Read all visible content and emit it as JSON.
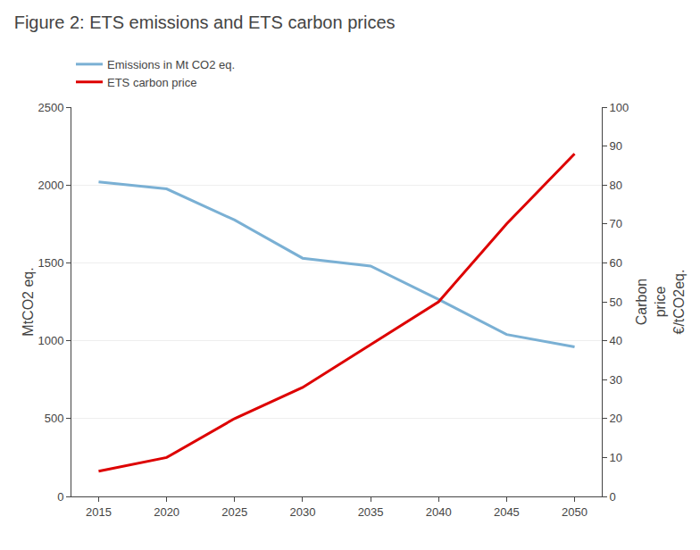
{
  "chart_data": {
    "type": "line",
    "title": "Figure 2: ETS emissions and ETS carbon prices",
    "ylabel": "MtCO2 eq.",
    "y2label": "Carbon\nprice\n€/tCO2eq.",
    "x": [
      2015,
      2020,
      2025,
      2030,
      2035,
      2040,
      2045,
      2050
    ],
    "series": [
      {
        "name": "Emissions in Mt CO2 eq.",
        "color": "#7ab0d4",
        "axis": "y",
        "values": [
          2020,
          1975,
          1775,
          1530,
          1480,
          1265,
          1040,
          960
        ]
      },
      {
        "name": "ETS carbon price",
        "color": "#dd0000",
        "axis": "y2",
        "values": [
          6.5,
          10,
          20,
          28,
          39,
          50,
          70,
          88
        ]
      }
    ],
    "xlim": [
      2013,
      2052
    ],
    "xticks": [
      2015,
      2020,
      2025,
      2030,
      2035,
      2040,
      2045,
      2050
    ],
    "ylim": [
      0,
      2500
    ],
    "yticks": [
      0,
      500,
      1000,
      1500,
      2000,
      2500
    ],
    "y2lim": [
      0,
      100
    ],
    "y2ticks": [
      0,
      10,
      20,
      30,
      40,
      50,
      60,
      70,
      80,
      90,
      100
    ],
    "grid": true,
    "legend": "upper left"
  }
}
